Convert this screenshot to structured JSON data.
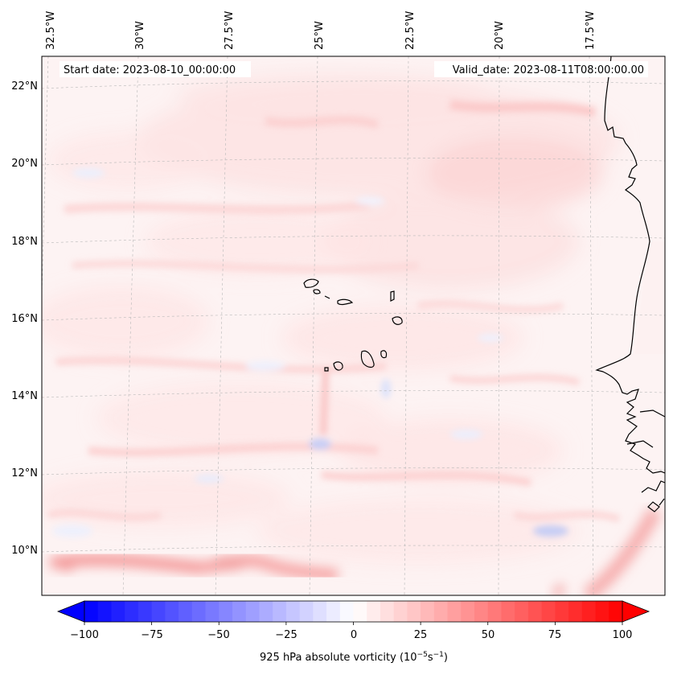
{
  "annotations": {
    "start_date": "Start date: 2023-08-10_00:00:00",
    "valid_date": "Valid_date: 2023-08-11T08:00:00.00"
  },
  "map": {
    "projection": "Lambert conformal",
    "lon_labels": [
      "32.5°W",
      "30°W",
      "27.5°W",
      "25°W",
      "22.5°W",
      "20°W",
      "17.5°W"
    ],
    "lat_labels": [
      "22°N",
      "20°N",
      "18°N",
      "16°N",
      "14°N",
      "12°N",
      "10°N"
    ],
    "features": [
      "Cape Verde islands",
      "West African coastline"
    ]
  },
  "colorbar": {
    "label": "925 hPa absolute vorticity (10",
    "label_exp1": "−5",
    "label_mid": "s",
    "label_exp2": "−1",
    "label_end": ")",
    "ticks": [
      "−100",
      "−75",
      "−50",
      "−25",
      "0",
      "25",
      "50",
      "75",
      "100"
    ],
    "min": -100,
    "max": 100,
    "levels": 40,
    "colors": {
      "low": "#0000ff",
      "mid": "#ffffff",
      "high": "#ff0000"
    }
  },
  "colors": {
    "field_base": "#fdf3f3",
    "pos_light": "#fde0e0",
    "pos_mid": "#fbcaca",
    "pos_strong": "#f7a7a7",
    "neg_light": "#eef0fd",
    "neg_mid": "#d6daf8",
    "coast": "#000000",
    "grid": "#b8b8b8"
  }
}
